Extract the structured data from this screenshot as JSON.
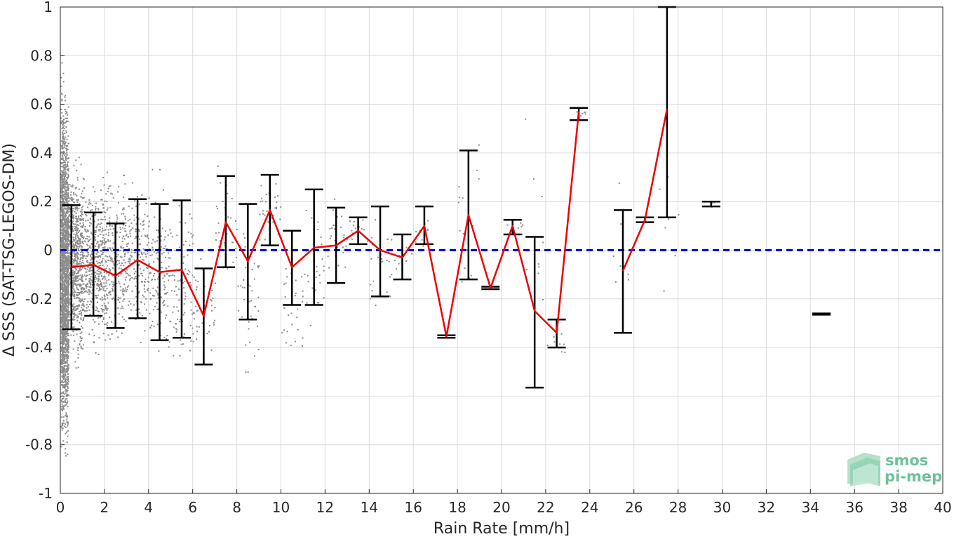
{
  "chart_data": {
    "type": "scatter",
    "title": "",
    "xlabel": "Rain Rate [mm/h]",
    "ylabel": "Δ SSS (SAT-TSG-LEGOS-DM)",
    "xlim": [
      0,
      40
    ],
    "ylim": [
      -1,
      1
    ],
    "grid": true,
    "x_ticks": [
      "0",
      "2",
      "4",
      "6",
      "8",
      "10",
      "12",
      "14",
      "16",
      "18",
      "20",
      "22",
      "24",
      "26",
      "28",
      "30",
      "32",
      "34",
      "36",
      "38",
      "40"
    ],
    "y_ticks": [
      "1",
      "0.8",
      "0.6",
      "0.4",
      "0.2",
      "0",
      "-0.2",
      "-0.4",
      "-0.6",
      "-0.8",
      "-1"
    ],
    "reference_line": {
      "y": 0,
      "style": "dashed",
      "color": "#0000ee"
    },
    "bin_means": {
      "color": "#ee0000",
      "x": [
        0.5,
        1.5,
        2.5,
        3.5,
        4.5,
        5.5,
        6.5,
        7.5,
        8.5,
        9.5,
        10.5,
        11.5,
        12.5,
        13.5,
        14.5,
        15.5,
        16.5,
        17.5,
        18.5,
        19.5,
        20.5,
        21.5,
        22.5,
        23.5,
        null,
        25.5,
        26.5,
        27.5
      ],
      "y": [
        -0.07,
        -0.06,
        -0.105,
        -0.04,
        -0.09,
        -0.08,
        -0.27,
        0.115,
        -0.045,
        0.165,
        -0.07,
        0.01,
        0.02,
        0.08,
        0.0,
        -0.03,
        0.1,
        -0.355,
        0.145,
        -0.155,
        0.1,
        -0.25,
        -0.34,
        0.57,
        null,
        -0.085,
        0.125,
        0.58
      ]
    },
    "error_bars": {
      "color": "#000000",
      "items": [
        {
          "x": 0.5,
          "low": -0.325,
          "high": 0.185
        },
        {
          "x": 1.5,
          "low": -0.27,
          "high": 0.155
        },
        {
          "x": 2.5,
          "low": -0.32,
          "high": 0.11
        },
        {
          "x": 3.5,
          "low": -0.28,
          "high": 0.21
        },
        {
          "x": 4.5,
          "low": -0.37,
          "high": 0.19
        },
        {
          "x": 5.5,
          "low": -0.36,
          "high": 0.205
        },
        {
          "x": 6.5,
          "low": -0.47,
          "high": -0.075
        },
        {
          "x": 7.5,
          "low": -0.07,
          "high": 0.305
        },
        {
          "x": 8.5,
          "low": -0.285,
          "high": 0.19
        },
        {
          "x": 9.5,
          "low": 0.02,
          "high": 0.31
        },
        {
          "x": 10.5,
          "low": -0.225,
          "high": 0.08
        },
        {
          "x": 11.5,
          "low": -0.225,
          "high": 0.25
        },
        {
          "x": 12.5,
          "low": -0.135,
          "high": 0.175
        },
        {
          "x": 13.5,
          "low": 0.025,
          "high": 0.135
        },
        {
          "x": 14.5,
          "low": -0.19,
          "high": 0.18
        },
        {
          "x": 15.5,
          "low": -0.12,
          "high": 0.065
        },
        {
          "x": 16.5,
          "low": 0.025,
          "high": 0.18
        },
        {
          "x": 17.5,
          "low": -0.36,
          "high": -0.35
        },
        {
          "x": 18.5,
          "low": -0.12,
          "high": 0.41
        },
        {
          "x": 19.5,
          "low": -0.16,
          "high": -0.15
        },
        {
          "x": 20.5,
          "low": 0.065,
          "high": 0.125
        },
        {
          "x": 21.5,
          "low": -0.565,
          "high": 0.055
        },
        {
          "x": 22.5,
          "low": -0.4,
          "high": -0.285
        },
        {
          "x": 23.5,
          "low": 0.535,
          "high": 0.585
        },
        {
          "x": 25.5,
          "low": -0.34,
          "high": 0.165
        },
        {
          "x": 26.5,
          "low": 0.115,
          "high": 0.135
        },
        {
          "x": 27.5,
          "low": 0.135,
          "high": 1.0
        },
        {
          "x": 29.5,
          "low": 0.18,
          "high": 0.2
        },
        {
          "x": 34.5,
          "low": -0.265,
          "high": -0.26
        }
      ]
    },
    "scatter": {
      "color": "#8c8c8c",
      "clusters": [
        {
          "x": [
            0.02,
            0.35
          ],
          "y": [
            -0.95,
            0.75
          ],
          "n": 1800
        },
        {
          "x": [
            0.0,
            0.12
          ],
          "y": [
            -1.0,
            0.9
          ],
          "n": 350
        },
        {
          "x": [
            0.35,
            1.0
          ],
          "y": [
            -0.55,
            0.45
          ],
          "n": 700
        },
        {
          "x": [
            1.0,
            2.0
          ],
          "y": [
            -0.45,
            0.35
          ],
          "n": 450
        },
        {
          "x": [
            2.0,
            3.0
          ],
          "y": [
            -0.5,
            0.4
          ],
          "n": 260
        },
        {
          "x": [
            3.0,
            4.0
          ],
          "y": [
            -0.45,
            0.4
          ],
          "n": 180
        },
        {
          "x": [
            4.0,
            5.0
          ],
          "y": [
            -0.55,
            0.35
          ],
          "n": 140
        },
        {
          "x": [
            5.0,
            6.0
          ],
          "y": [
            -0.55,
            0.3
          ],
          "n": 90
        },
        {
          "x": [
            6.0,
            7.0
          ],
          "y": [
            -0.5,
            0.05
          ],
          "n": 40
        },
        {
          "x": [
            7.0,
            8.0
          ],
          "y": [
            -0.2,
            0.45
          ],
          "n": 40
        },
        {
          "x": [
            8.0,
            9.0
          ],
          "y": [
            -0.6,
            0.25
          ],
          "n": 40
        },
        {
          "x": [
            9.0,
            10.0
          ],
          "y": [
            0.0,
            0.35
          ],
          "n": 30
        },
        {
          "x": [
            10.0,
            11.0
          ],
          "y": [
            -0.6,
            0.15
          ],
          "n": 30
        },
        {
          "x": [
            11.0,
            12.0
          ],
          "y": [
            -0.45,
            0.3
          ],
          "n": 30
        },
        {
          "x": [
            12.0,
            13.0
          ],
          "y": [
            -0.15,
            0.3
          ],
          "n": 25
        },
        {
          "x": [
            13.0,
            14.0
          ],
          "y": [
            0.0,
            0.15
          ],
          "n": 15
        },
        {
          "x": [
            14.0,
            15.0
          ],
          "y": [
            -0.3,
            0.2
          ],
          "n": 25
        },
        {
          "x": [
            15.0,
            16.0
          ],
          "y": [
            -0.15,
            0.1
          ],
          "n": 10
        },
        {
          "x": [
            16.0,
            17.0
          ],
          "y": [
            0.0,
            0.2
          ],
          "n": 10
        },
        {
          "x": [
            18.0,
            19.0
          ],
          "y": [
            -0.3,
            0.6
          ],
          "n": 15
        },
        {
          "x": [
            20.0,
            21.0
          ],
          "y": [
            0.05,
            0.15
          ],
          "n": 8
        },
        {
          "x": [
            21.0,
            22.0
          ],
          "y": [
            -0.55,
            0.6
          ],
          "n": 10
        },
        {
          "x": [
            22.0,
            23.0
          ],
          "y": [
            -0.45,
            -0.3
          ],
          "n": 8
        },
        {
          "x": [
            23.3,
            23.8
          ],
          "y": [
            0.53,
            0.62
          ],
          "n": 8
        },
        {
          "x": [
            25.0,
            26.0
          ],
          "y": [
            -0.3,
            0.45
          ],
          "n": 8
        },
        {
          "x": [
            27.0,
            28.0
          ],
          "y": [
            -0.25,
            0.6
          ],
          "n": 8
        },
        {
          "x": [
            29.3,
            29.8
          ],
          "y": [
            0.17,
            0.21
          ],
          "n": 4
        }
      ]
    }
  },
  "logo": {
    "line1": "smos",
    "line2": "pi-mep",
    "color": "#6fc19a"
  }
}
